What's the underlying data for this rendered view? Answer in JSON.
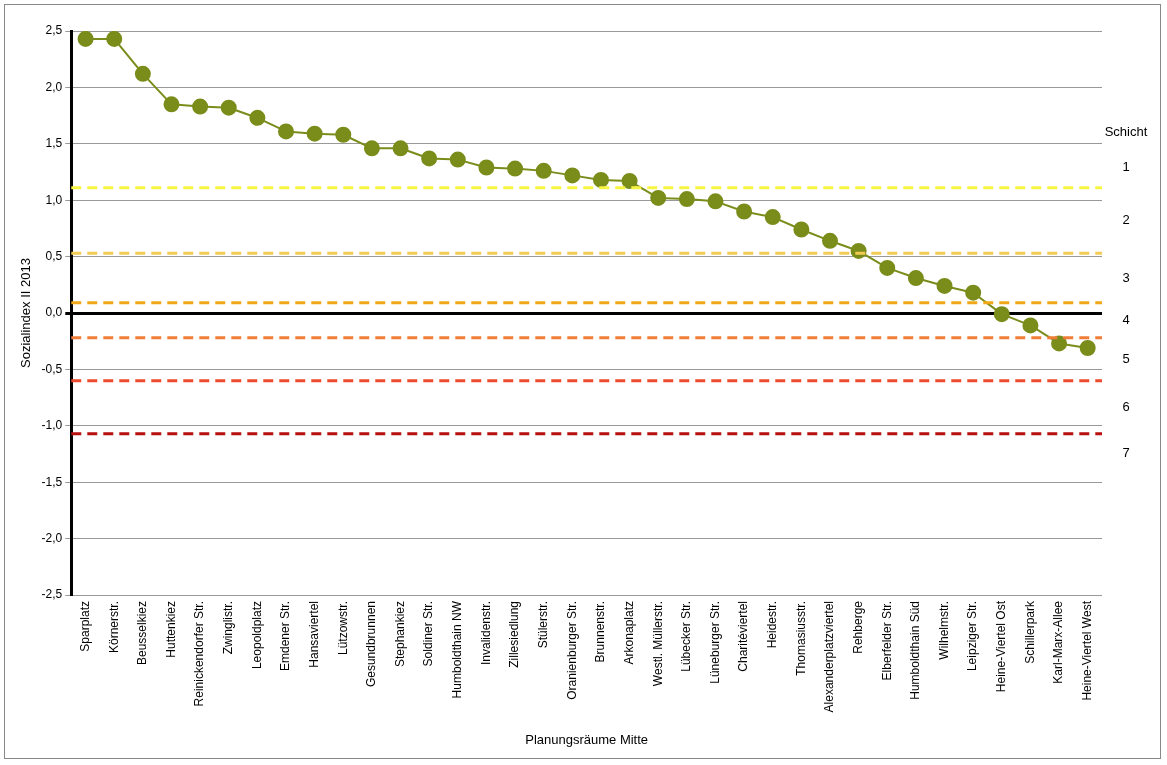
{
  "chart_data": {
    "type": "line",
    "xlabel": "Planungsräume Mitte",
    "ylabel": "Sozialindex II 2013",
    "categories": [
      "Sparplatz",
      "Körnerstr.",
      "Beusselkiez",
      "Huttenkiez",
      "Reinickendorfer Str.",
      "Zwinglistr.",
      "Leopoldplatz",
      "Emdener Str.",
      "Hansaviertel",
      "Lützowstr.",
      "Gesundbrunnen",
      "Stephankiez",
      "Soldiner Str.",
      "Humboldthain NW",
      "Invalidenstr.",
      "Zillesiedlung",
      "Stülerstr.",
      "Oranienburger Str.",
      "Brunnenstr.",
      "Arkonaplatz",
      "Westl. Müllerstr.",
      "Lübecker Str.",
      "Lüneburger Str.",
      "Charitéviertel",
      "Heidestr.",
      "Thomasiusstr.",
      "Alexanderplatzviertel",
      "Rehberge",
      "Elberfelder Str.",
      "Humboldthain Süd",
      "Wilhelmstr.",
      "Leipziger Str.",
      "Heine-Viertel Ost",
      "Schillerpark",
      "Karl-Marx-Allee",
      "Heine-Viertel West"
    ],
    "series": [
      {
        "color": "#7a8c1a",
        "values": [
          2.43,
          2.43,
          2.12,
          1.85,
          1.83,
          1.82,
          1.73,
          1.61,
          1.59,
          1.58,
          1.46,
          1.46,
          1.37,
          1.36,
          1.29,
          1.28,
          1.26,
          1.22,
          1.18,
          1.17,
          1.02,
          1.01,
          0.99,
          0.9,
          0.85,
          0.74,
          0.64,
          0.55,
          0.4,
          0.31,
          0.24,
          0.18,
          -0.01,
          -0.11,
          -0.27,
          -0.31
        ]
      }
    ],
    "ylim": [
      -2.5,
      2.5
    ],
    "yticks": [
      {
        "value": -2.5,
        "label": "-2,5"
      },
      {
        "value": -2,
        "label": "-2,0"
      },
      {
        "value": -1.5,
        "label": "-1,5"
      },
      {
        "value": -1,
        "label": "-1,0"
      },
      {
        "value": -0.5,
        "label": "-0,5"
      },
      {
        "value": 0,
        "label": "0,0"
      },
      {
        "value": 0.5,
        "label": "0,5"
      },
      {
        "value": 1,
        "label": "1,0"
      },
      {
        "value": 1.5,
        "label": "1,5"
      },
      {
        "value": 2,
        "label": "2,0"
      },
      {
        "value": 2.5,
        "label": "2,5"
      }
    ],
    "grid": "y",
    "legend": false,
    "marker": "circle",
    "line_style": "solid",
    "ref_lines": [
      {
        "axis": "y",
        "value": 1.11,
        "color": "#f5f542",
        "line_style": "dashed"
      },
      {
        "axis": "y",
        "value": 0.53,
        "color": "#f2cc55",
        "line_style": "dashed"
      },
      {
        "axis": "y",
        "value": 0.09,
        "color": "#f0a818",
        "line_style": "dashed"
      },
      {
        "axis": "y",
        "value": -0.22,
        "color": "#f07d38",
        "line_style": "dashed"
      },
      {
        "axis": "y",
        "value": -0.6,
        "color": "#ee4a2e",
        "line_style": "dashed"
      },
      {
        "axis": "y",
        "value": -1.07,
        "color": "#b80f0f",
        "line_style": "dashed"
      }
    ],
    "annotations": [
      "Schicht",
      "1",
      "2",
      "3",
      "4",
      "5",
      "6",
      "7"
    ]
  }
}
